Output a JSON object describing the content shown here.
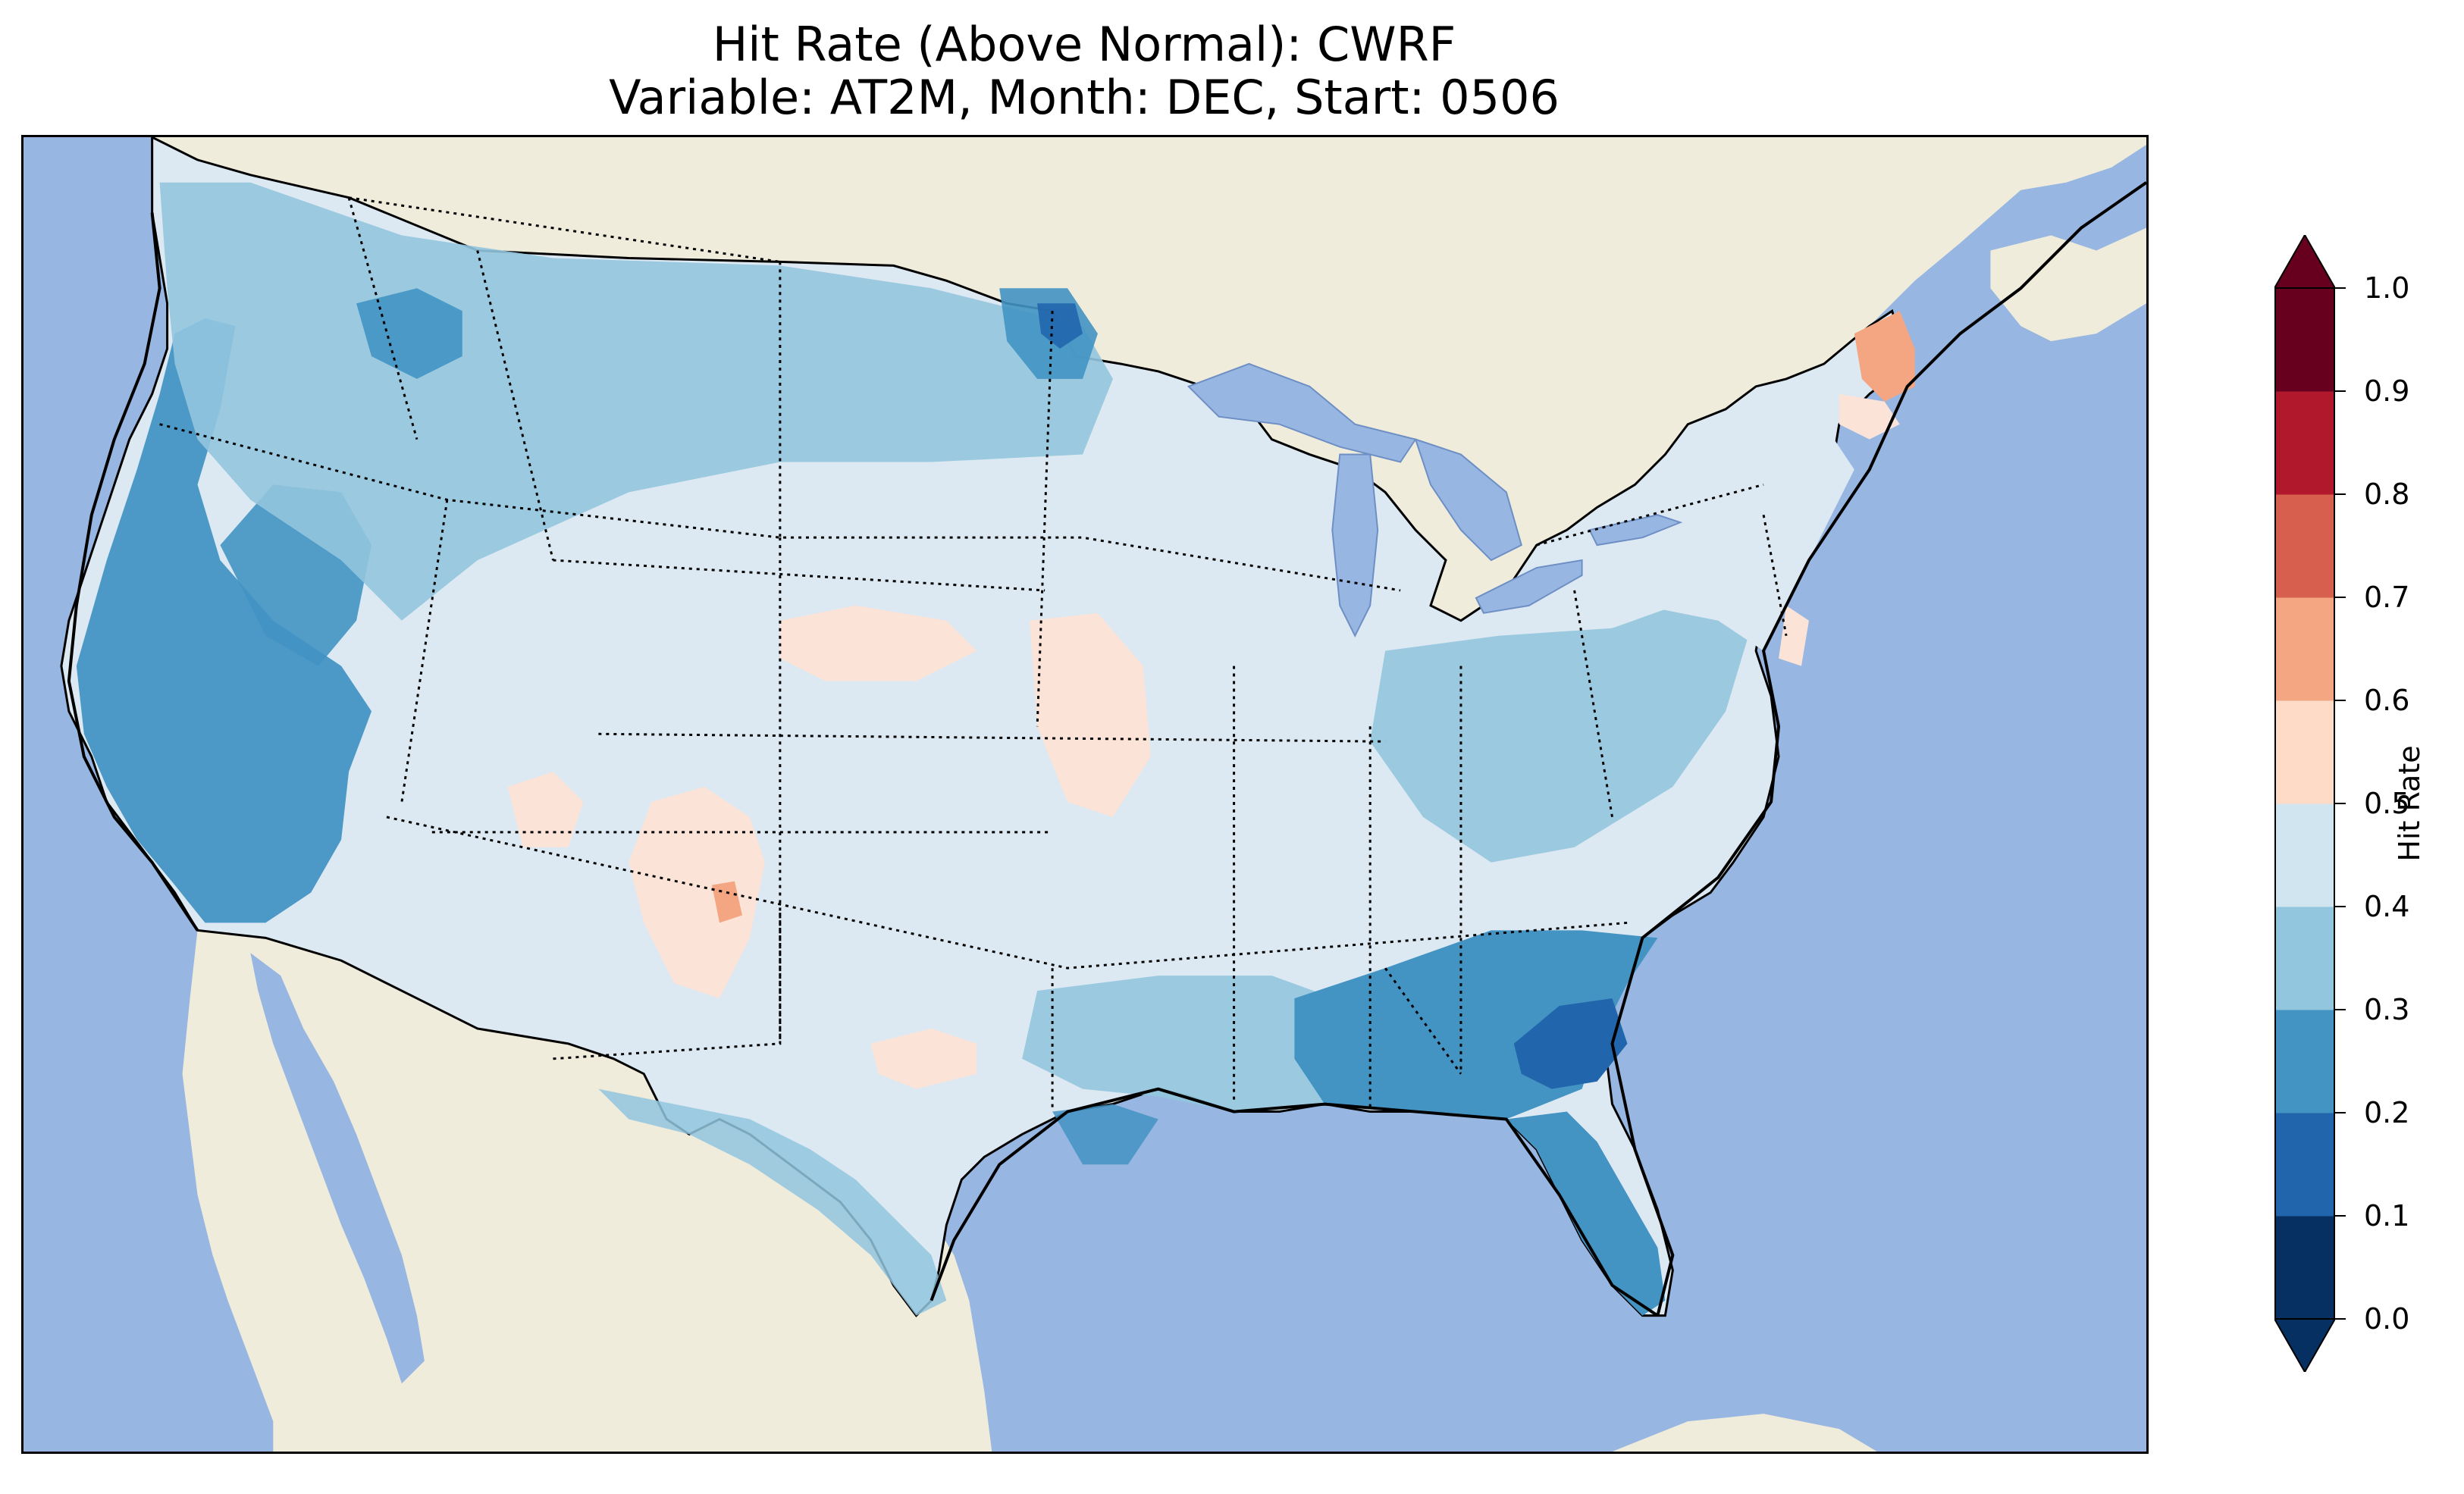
{
  "title": {
    "line1": "Hit Rate (Above Normal): CWRF",
    "line2": "Variable: AT2M, Month: DEC, Start: 0506"
  },
  "map": {
    "ocean_color": "#97b6e1",
    "land_color": "#efecdc",
    "lakes_color": "#97b6e1",
    "borders_style": "dotted",
    "coastline_color": "#000000",
    "regions": [
      {
        "name": "west-coast",
        "class_value": 0.25
      },
      {
        "name": "pacific-northwest",
        "class_value": 0.35
      },
      {
        "name": "northern-plains",
        "class_value": 0.35
      },
      {
        "name": "central-plains",
        "class_value": 0.45
      },
      {
        "name": "four-corners",
        "class_value": 0.55
      },
      {
        "name": "nebraska-area",
        "class_value": 0.55
      },
      {
        "name": "midwest",
        "class_value": 0.45
      },
      {
        "name": "ohio-valley",
        "class_value": 0.35
      },
      {
        "name": "south-central",
        "class_value": 0.45
      },
      {
        "name": "gulf-coast",
        "class_value": 0.25
      },
      {
        "name": "southeast",
        "class_value": 0.25
      },
      {
        "name": "south-carolina",
        "class_value": 0.15
      },
      {
        "name": "florida",
        "class_value": 0.25
      },
      {
        "name": "northeast",
        "class_value": 0.45
      },
      {
        "name": "maine",
        "class_value": 0.65
      }
    ]
  },
  "colorbar": {
    "label": "Hit Rate",
    "ticks": [
      "0.0",
      "0.1",
      "0.2",
      "0.3",
      "0.4",
      "0.5",
      "0.6",
      "0.7",
      "0.8",
      "0.9",
      "1.0"
    ],
    "colors": [
      "#053061",
      "#2166ac",
      "#4393c3",
      "#92c5de",
      "#d1e5f0",
      "#fddbc7",
      "#f4a582",
      "#d6604d",
      "#b2182b",
      "#67001f"
    ],
    "extend": "both"
  }
}
